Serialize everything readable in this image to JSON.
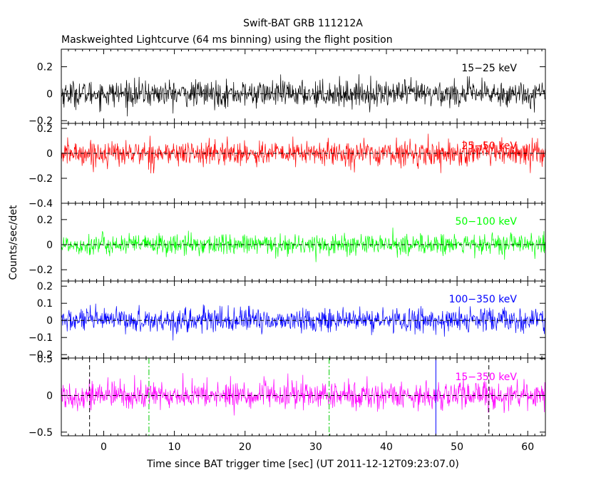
{
  "chart_data": {
    "type": "line",
    "title": "Swift-BAT GRB 111212A",
    "subtitle": "Maskweighted Lightcurve (64 ms binning) using the flight position",
    "xlabel": "Time since BAT trigger time [sec] (UT 2011-12-12T09:23:07.0)",
    "ylabel": "Counts/sec/det",
    "xlim": [
      -6,
      62.5
    ],
    "x_ticks": [
      0,
      10,
      20,
      30,
      40,
      50,
      60
    ],
    "x_tick_labels": [
      "0",
      "10",
      "20",
      "30",
      "40",
      "50",
      "60"
    ],
    "bin_width_s": 0.064,
    "panels": [
      {
        "band": "15-25 keV",
        "label": "15−25 keV",
        "color": "#000000",
        "ylim": [
          -0.22,
          0.33
        ],
        "y_ticks": [
          0.2,
          0,
          -0.2
        ],
        "y_tick_labels": [
          "0.2",
          "0",
          "−0.2"
        ],
        "noise_sigma": 0.048,
        "peak": 0.17,
        "trough": -0.18
      },
      {
        "band": "25-50 keV",
        "label": "25−50 keV",
        "color": "#ff0000",
        "ylim": [
          -0.4,
          0.24
        ],
        "y_ticks": [
          0.2,
          0,
          -0.2,
          -0.4
        ],
        "y_tick_labels": [
          "0.2",
          "0",
          "−0.2",
          "−0.4"
        ],
        "noise_sigma": 0.05,
        "peak": 0.17,
        "trough": -0.16
      },
      {
        "band": "50-100 keV",
        "label": "50−100 keV",
        "color": "#00ff00",
        "ylim": [
          -0.29,
          0.33
        ],
        "y_ticks": [
          0.2,
          0,
          -0.2
        ],
        "y_tick_labels": [
          "0.2",
          "0",
          "−0.2"
        ],
        "noise_sigma": 0.042,
        "peak": 0.16,
        "trough": -0.14
      },
      {
        "band": "100-350 keV",
        "label": "100−350 keV",
        "color": "#0000ff",
        "ylim": [
          -0.22,
          0.23
        ],
        "y_ticks": [
          0.2,
          0.1,
          0,
          -0.1,
          -0.2
        ],
        "y_tick_labels": [
          "0.2",
          "0.1",
          "0",
          "−0.1",
          "−0.2"
        ],
        "noise_sigma": 0.035,
        "peak": 0.12,
        "trough": -0.14
      },
      {
        "band": "15-350 keV",
        "label": "15−350 keV",
        "color": "#ff00ff",
        "ylim": [
          -0.55,
          0.51
        ],
        "y_ticks": [
          0.5,
          0,
          -0.5
        ],
        "y_tick_labels": [
          "0.5",
          "0",
          "−0.5"
        ],
        "noise_sigma": 0.095,
        "peak": 0.36,
        "trough": -0.28
      }
    ],
    "markers": [
      {
        "x": -2,
        "color": "#000000",
        "style": "dashed"
      },
      {
        "x": 6.4,
        "color": "#00cc00",
        "style": "dashdot"
      },
      {
        "x": 31.9,
        "color": "#00cc00",
        "style": "dashdot"
      },
      {
        "x": 47,
        "color": "#0000ff",
        "style": "solid"
      },
      {
        "x": 54.5,
        "color": "#000000",
        "style": "dashed"
      }
    ],
    "grid": false,
    "zero_line": "dashed"
  }
}
